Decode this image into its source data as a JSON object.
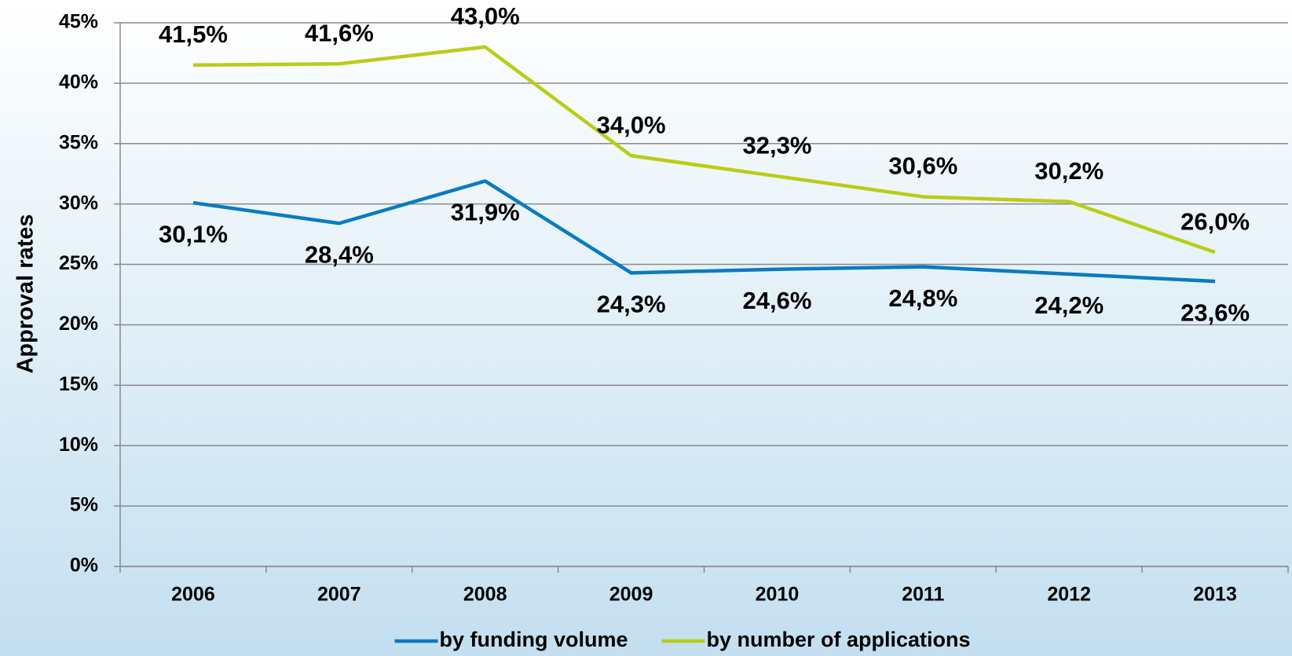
{
  "chart_data": {
    "type": "line",
    "y_label": "Approval rates",
    "categories": [
      "2006",
      "2007",
      "2008",
      "2009",
      "2010",
      "2011",
      "2012",
      "2013"
    ],
    "series": [
      {
        "name": "by funding volume",
        "color": "#0a7bc1",
        "values": [
          30.1,
          28.4,
          31.9,
          24.3,
          24.6,
          24.8,
          24.2,
          23.6
        ],
        "value_labels": [
          "30,1%",
          "28,4%",
          "31,9%",
          "24,3%",
          "24,6%",
          "24,8%",
          "24,2%",
          "23,6%"
        ]
      },
      {
        "name": "by number of applications",
        "color": "#b9cd17",
        "values": [
          41.5,
          41.6,
          43.0,
          34.0,
          32.3,
          30.6,
          30.2,
          26.0
        ],
        "value_labels": [
          "41,5%",
          "41,6%",
          "43,0%",
          "34,0%",
          "32,3%",
          "30,6%",
          "30,2%",
          "26,0%"
        ]
      }
    ],
    "ylim": [
      0,
      45
    ],
    "yticks": [
      {
        "value": 0,
        "label": "0%"
      },
      {
        "value": 5,
        "label": "5%"
      },
      {
        "value": 10,
        "label": "10%"
      },
      {
        "value": 15,
        "label": "15%"
      },
      {
        "value": 20,
        "label": "20%"
      },
      {
        "value": 25,
        "label": "25%"
      },
      {
        "value": 30,
        "label": "30%"
      },
      {
        "value": 35,
        "label": "35%"
      },
      {
        "value": 40,
        "label": "40%"
      },
      {
        "value": 45,
        "label": "45%"
      }
    ],
    "grid": true,
    "legend": "bottom"
  }
}
